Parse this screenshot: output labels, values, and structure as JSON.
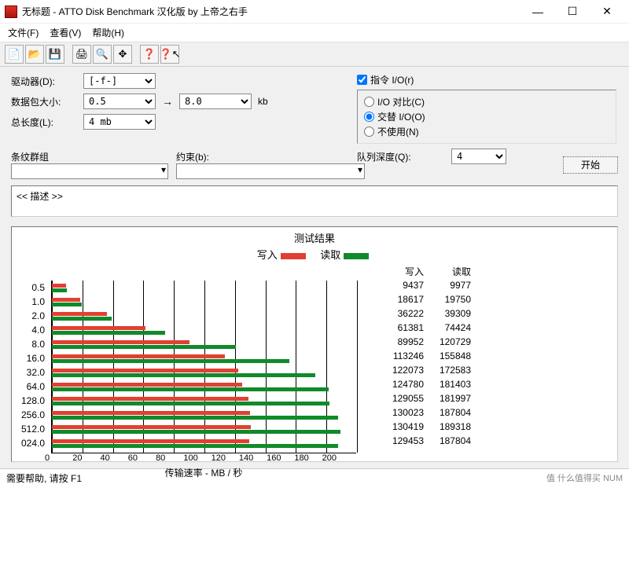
{
  "window": {
    "title": "无标题 - ATTO Disk Benchmark  汉化版 by 上帝之右手",
    "min": "—",
    "max": "☐",
    "close": "✕"
  },
  "menu": {
    "file": "文件(F)",
    "view": "查看(V)",
    "help": "帮助(H)"
  },
  "toolbar_icons": [
    "📄",
    "📂",
    "💾",
    "",
    "🖨",
    "🔍",
    "✥",
    "",
    "❓",
    "❓↖"
  ],
  "form": {
    "drive_label": "驱动器(D):",
    "drive_value": "[-f-]",
    "pktsize_label": "数据包大小:",
    "pkt_from": "0.5",
    "arrow": "→",
    "pkt_to": "8.0",
    "pkt_unit": "kb",
    "len_label": "总长度(L):",
    "len_value": "4 mb",
    "direct_io": "指令 I/O(r)",
    "radio1": "I/O 对比(C)",
    "radio2": "交替 I/O(O)",
    "radio3": "不使用(N)",
    "qd_label": "队列深度(Q):",
    "qd_value": "4",
    "stripe_label": "条纹群组",
    "constraint_label": "约束(b):",
    "start": "开始",
    "desc": "<< 描述 >>"
  },
  "results": {
    "title": "测试结果",
    "write_label": "写入",
    "read_label": "读取",
    "colors": {
      "write": "#e14032",
      "read": "#108a2a",
      "grid": "#000000",
      "bg": "#ffffff"
    },
    "x_max": 200,
    "x_ticks": [
      "0",
      "20",
      "40",
      "60",
      "80",
      "100",
      "120",
      "140",
      "160",
      "180",
      "200"
    ],
    "x_label": "传输速率 - MB / 秒",
    "series": [
      {
        "cat": "0.5",
        "write": 9437,
        "read": 9977
      },
      {
        "cat": "1.0",
        "write": 18617,
        "read": 19750
      },
      {
        "cat": "2.0",
        "write": 36222,
        "read": 39309
      },
      {
        "cat": "4.0",
        "write": 61381,
        "read": 74424
      },
      {
        "cat": "8.0",
        "write": 89952,
        "read": 120729
      },
      {
        "cat": "16.0",
        "write": 113246,
        "read": 155848
      },
      {
        "cat": "32.0",
        "write": 122073,
        "read": 172583
      },
      {
        "cat": "64.0",
        "write": 124780,
        "read": 181403
      },
      {
        "cat": "128.0",
        "write": 129055,
        "read": 181997
      },
      {
        "cat": "256.0",
        "write": 130023,
        "read": 187804
      },
      {
        "cat": "512.0",
        "write": 130419,
        "read": 189318
      },
      {
        "cat": "024.0",
        "write": 129453,
        "read": 187804
      }
    ]
  },
  "status": {
    "help": "需要帮助, 请按 F1",
    "right": "值 什么值得买  NUM"
  }
}
